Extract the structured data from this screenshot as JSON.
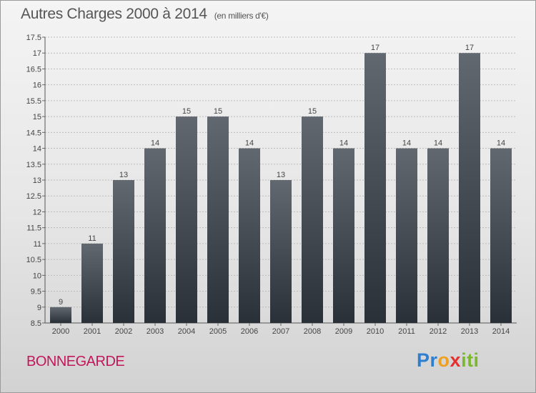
{
  "header": {
    "title": "Autres Charges 2000 à 2014",
    "subtitle": "(en milliers d'€)"
  },
  "footer": {
    "location": "BONNEGARDE",
    "logo": "Proxiti"
  },
  "colors": {
    "bar_top": "#626870",
    "bar_bottom": "#2a3038",
    "location_text": "#c2185b"
  },
  "chart_data": {
    "type": "bar",
    "title": "Autres Charges 2000 à 2014",
    "subtitle": "(en milliers d'€)",
    "categories": [
      "2000",
      "2001",
      "2002",
      "2003",
      "2004",
      "2005",
      "2006",
      "2007",
      "2008",
      "2009",
      "2010",
      "2011",
      "2012",
      "2013",
      "2014"
    ],
    "values": [
      9,
      11,
      13,
      14,
      15,
      15,
      14,
      13,
      15,
      14,
      17,
      14,
      14,
      17,
      14
    ],
    "ylim": [
      8.5,
      17.5
    ],
    "yticks": [
      8.5,
      9,
      9.5,
      10,
      10.5,
      11,
      11.5,
      12,
      12.5,
      13,
      13.5,
      14,
      14.5,
      15,
      15.5,
      16,
      16.5,
      17,
      17.5
    ],
    "ytick_labels": [
      "8.5",
      "9",
      "9.5",
      "10",
      "10.5",
      "11",
      "11.5",
      "12",
      "12.5",
      "13",
      "13.5",
      "14",
      "14.5",
      "15",
      "15.5",
      "16",
      "16.5",
      "17",
      "17.5"
    ],
    "grid": true,
    "xlabel": "",
    "ylabel": ""
  }
}
